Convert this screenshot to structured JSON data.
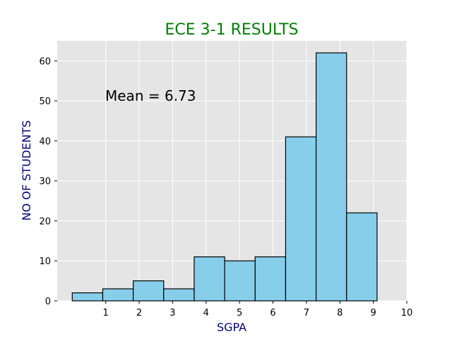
{
  "chart_data": {
    "type": "bar",
    "title": "ECE 3-1 RESULTS",
    "xlabel": "SGPA",
    "ylabel": "NO OF STUDENTS",
    "annotation": "Mean = 6.73",
    "bin_edges": [
      0,
      0.9111,
      1.8222,
      2.7333,
      3.6444,
      4.5556,
      5.4667,
      6.3778,
      7.2889,
      8.2,
      9.1111
    ],
    "values": [
      2,
      3,
      5,
      3,
      11,
      10,
      11,
      41,
      62,
      22
    ],
    "xlim": [
      -0.45,
      10.0
    ],
    "ylim": [
      0,
      65
    ],
    "xticks": [
      1,
      2,
      3,
      4,
      5,
      6,
      7,
      8,
      9,
      10
    ],
    "yticks": [
      0,
      10,
      20,
      30,
      40,
      50,
      60
    ],
    "grid": true,
    "colors": {
      "bar_fill": "#87ceeb",
      "bar_edge": "#000000",
      "plot_background": "#e5e5e5",
      "grid": "#ffffff",
      "title": "#008000",
      "axis_label": "#000080",
      "annotation": "#000000"
    }
  }
}
